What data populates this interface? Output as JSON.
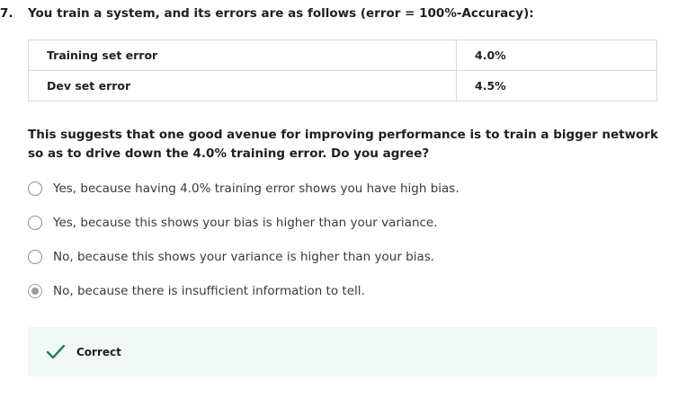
{
  "question": {
    "number": "7.",
    "prompt": "You train a system, and its errors are as follows (error = 100%-Accuracy):",
    "table": {
      "rows": [
        {
          "label": "Training set error",
          "value": "4.0%"
        },
        {
          "label": "Dev set error",
          "value": "4.5%"
        }
      ]
    },
    "text": "This suggests that one good avenue for improving performance is to train a bigger network so as to drive down the 4.0% training error. Do you agree?",
    "options": [
      {
        "label": "Yes, because having 4.0% training error shows you have high bias.",
        "selected": false
      },
      {
        "label": "Yes, because this shows your bias is higher than your variance.",
        "selected": false
      },
      {
        "label": "No, because this shows your variance is higher than your bias.",
        "selected": false
      },
      {
        "label": "No, because there is insufficient information to tell.",
        "selected": true
      }
    ]
  },
  "feedback": {
    "label": "Correct",
    "icon": "check-icon",
    "accent_color": "#1f8354",
    "background_color": "#f2f8f5"
  }
}
